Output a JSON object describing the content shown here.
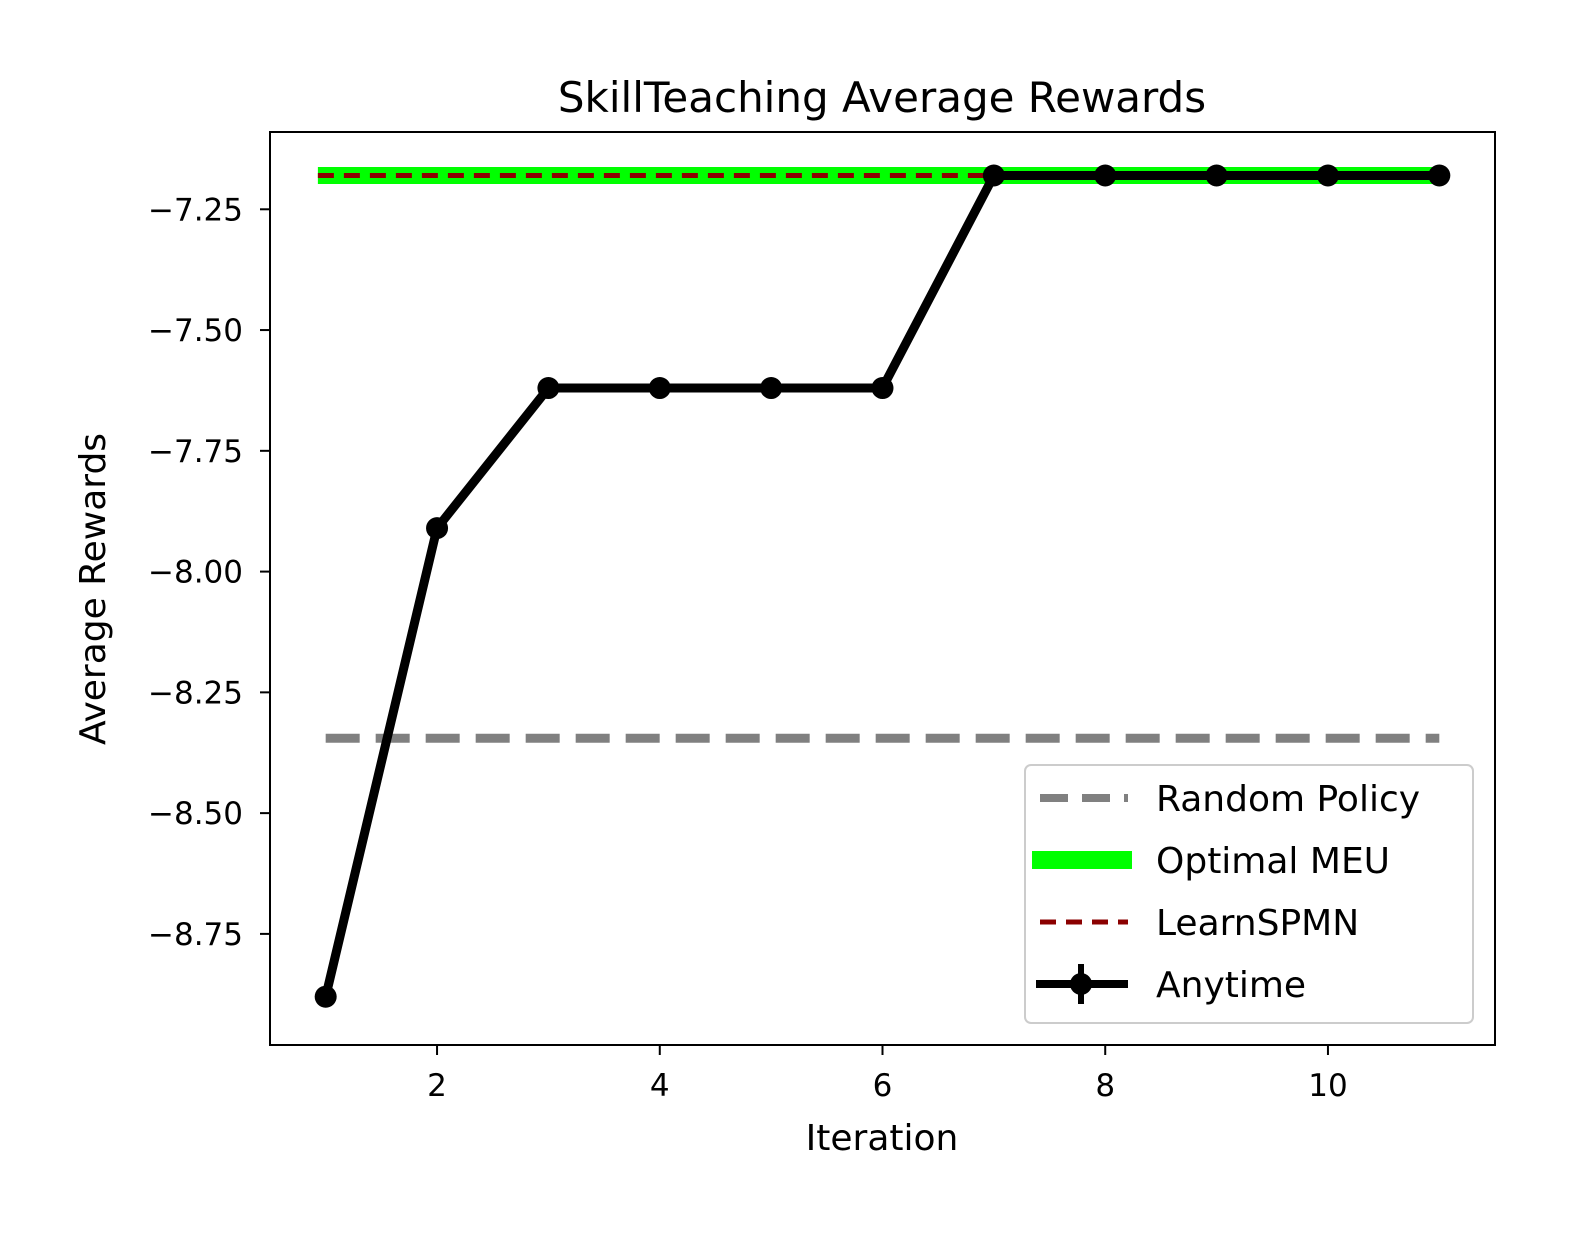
{
  "chart_data": {
    "type": "line",
    "title": "SkillTeaching Average Rewards",
    "xlabel": "Iteration",
    "ylabel": "Average Rewards",
    "xlim": [
      0.5,
      11.5
    ],
    "ylim": [
      -8.98,
      -7.09
    ],
    "x_ticks": [
      2,
      4,
      6,
      8,
      10
    ],
    "x_tick_labels": [
      "2",
      "4",
      "6",
      "8",
      "10"
    ],
    "y_ticks": [
      -7.25,
      -7.5,
      -7.75,
      -8.0,
      -8.25,
      -8.5,
      -8.75
    ],
    "y_tick_labels": [
      "−7.25",
      "−7.50",
      "−7.75",
      "−8.00",
      "−8.25",
      "−8.50",
      "−8.75"
    ],
    "grid": false,
    "legend_position": "lower-right",
    "series": [
      {
        "name": "Random Policy",
        "style": "dashed",
        "color": "#808080",
        "x": [
          1,
          11
        ],
        "values": [
          -8.345,
          -8.345
        ]
      },
      {
        "name": "Optimal MEU",
        "style": "solid-thick",
        "color": "#00ff00",
        "x": [
          0.93,
          11
        ],
        "values": [
          -7.18,
          -7.18
        ]
      },
      {
        "name": "LearnSPMN",
        "style": "dashed",
        "color": "#8b0000",
        "x": [
          0.93,
          11
        ],
        "values": [
          -7.18,
          -7.18
        ]
      },
      {
        "name": "Anytime",
        "style": "solid-markers",
        "color": "#000000",
        "x": [
          1,
          2,
          3,
          4,
          5,
          6,
          7,
          8,
          9,
          10,
          11
        ],
        "values": [
          -8.88,
          -7.91,
          -7.62,
          -7.62,
          -7.62,
          -7.62,
          -7.18,
          -7.18,
          -7.18,
          -7.18,
          -7.18
        ]
      }
    ]
  }
}
